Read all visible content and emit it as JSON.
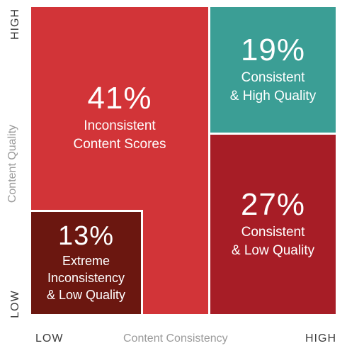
{
  "chart_data": {
    "type": "quadrant",
    "x_axis": {
      "label": "Content Consistency",
      "low": "LOW",
      "high": "HIGH"
    },
    "y_axis": {
      "label": "Content Quality",
      "low": "LOW",
      "high": "HIGH"
    },
    "segments": [
      {
        "value": "41%",
        "label": "Inconsistent\nContent Scores",
        "color": "#d23438"
      },
      {
        "value": "19%",
        "label": "Consistent\n& High Quality",
        "color": "#3b9e95"
      },
      {
        "value": "27%",
        "label": "Consistent\n& Low Quality",
        "color": "#a71d26"
      },
      {
        "value": "13%",
        "label": "Extreme\nInconsistency\n& Low Quality",
        "color": "#6b1710"
      }
    ]
  }
}
